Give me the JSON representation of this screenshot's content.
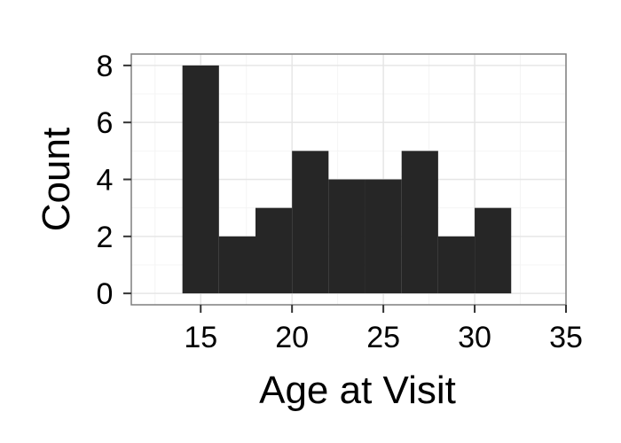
{
  "chart_data": {
    "type": "bar",
    "subtype": "histogram",
    "title": "",
    "xlabel": "Age at Visit",
    "ylabel": "Count",
    "bins": [
      {
        "x0": 14,
        "x1": 16,
        "count": 8
      },
      {
        "x0": 16,
        "x1": 18,
        "count": 2
      },
      {
        "x0": 18,
        "x1": 20,
        "count": 3
      },
      {
        "x0": 20,
        "x1": 22,
        "count": 5
      },
      {
        "x0": 22,
        "x1": 24,
        "count": 4
      },
      {
        "x0": 24,
        "x1": 26,
        "count": 4
      },
      {
        "x0": 26,
        "x1": 28,
        "count": 5
      },
      {
        "x0": 28,
        "x1": 30,
        "count": 2
      },
      {
        "x0": 30,
        "x1": 32,
        "count": 3
      }
    ],
    "xlim": [
      11.2,
      35
    ],
    "ylim": [
      -0.4,
      8.4
    ],
    "xticks": [
      15,
      20,
      25,
      30,
      35
    ],
    "yticks": [
      0,
      2,
      4,
      6,
      8
    ],
    "grid": true,
    "legend": "none",
    "colors": {
      "bar": "#262626",
      "panel_border": "#7f7f7f",
      "grid_major": "#e6e6e6",
      "grid_minor": "#f4f4f4",
      "tick": "#333333"
    }
  }
}
